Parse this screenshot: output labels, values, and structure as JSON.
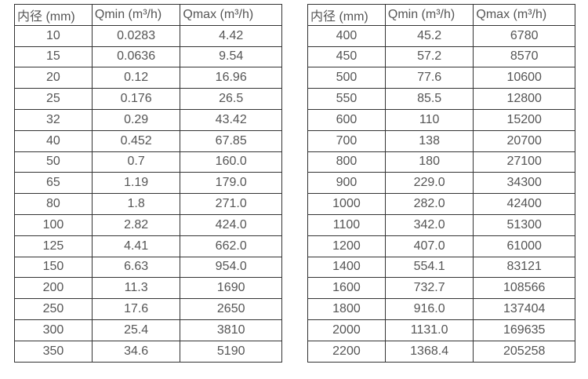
{
  "colors": {
    "border": "#333333",
    "text": "#555555",
    "background": "#ffffff"
  },
  "tables": [
    {
      "name": "flow-rate-table-small-diameters",
      "headers": [
        "内径 (mm)",
        "Qmin (m³/h)",
        "Qmax (m³/h)"
      ],
      "rows": [
        [
          "10",
          "0.0283",
          "4.42"
        ],
        [
          "15",
          "0.0636",
          "9.54"
        ],
        [
          "20",
          "0.12",
          "16.96"
        ],
        [
          "25",
          "0.176",
          "26.5"
        ],
        [
          "32",
          "0.29",
          "43.42"
        ],
        [
          "40",
          "0.452",
          "67.85"
        ],
        [
          "50",
          "0.7",
          "160.0"
        ],
        [
          "65",
          "1.19",
          "179.0"
        ],
        [
          "80",
          "1.8",
          "271.0"
        ],
        [
          "100",
          "2.82",
          "424.0"
        ],
        [
          "125",
          "4.41",
          "662.0"
        ],
        [
          "150",
          "6.63",
          "954.0"
        ],
        [
          "200",
          "11.3",
          "1690"
        ],
        [
          "250",
          "17.6",
          "2650"
        ],
        [
          "300",
          "25.4",
          "3810"
        ],
        [
          "350",
          "34.6",
          "5190"
        ]
      ]
    },
    {
      "name": "flow-rate-table-large-diameters",
      "headers": [
        "内径 (mm)",
        "Qmin (m³/h)",
        "Qmax (m³/h)"
      ],
      "rows": [
        [
          "400",
          "45.2",
          "6780"
        ],
        [
          "450",
          "57.2",
          "8570"
        ],
        [
          "500",
          "77.6",
          "10600"
        ],
        [
          "550",
          "85.5",
          "12800"
        ],
        [
          "600",
          "110",
          "15200"
        ],
        [
          "700",
          "138",
          "20700"
        ],
        [
          "800",
          "180",
          "27100"
        ],
        [
          "900",
          "229.0",
          "34300"
        ],
        [
          "1000",
          "282.0",
          "42400"
        ],
        [
          "1100",
          "342.0",
          "51300"
        ],
        [
          "1200",
          "407.0",
          "61000"
        ],
        [
          "1400",
          "554.1",
          "83121"
        ],
        [
          "1600",
          "732.7",
          "108566"
        ],
        [
          "1800",
          "916.0",
          "137404"
        ],
        [
          "2000",
          "1131.0",
          "169635"
        ],
        [
          "2200",
          "1368.4",
          "205258"
        ]
      ]
    }
  ]
}
